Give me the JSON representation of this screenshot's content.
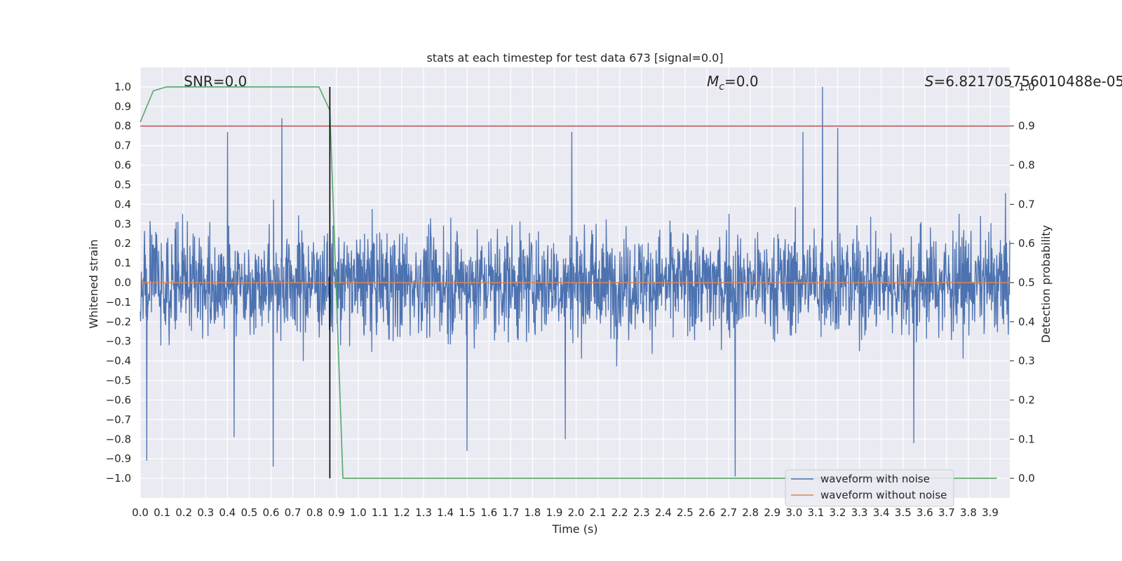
{
  "chart_data": {
    "type": "line",
    "title": "stats at each timestep for test data 673 [signal=0.0]",
    "xlabel": "Time (s)",
    "ylabel": "Whitened strain",
    "y2label": "Detection probability",
    "xlim": [
      0.0,
      3.99
    ],
    "ylim": [
      -1.1,
      1.1
    ],
    "y2lim": [
      -0.05,
      1.05
    ],
    "xticks": [
      "0.0",
      "0.1",
      "0.2",
      "0.3",
      "0.4",
      "0.5",
      "0.6",
      "0.7",
      "0.8",
      "0.9",
      "1.0",
      "1.1",
      "1.2",
      "1.3",
      "1.4",
      "1.5",
      "1.6",
      "1.7",
      "1.8",
      "1.9",
      "2.0",
      "2.1",
      "2.2",
      "2.3",
      "2.4",
      "2.5",
      "2.6",
      "2.7",
      "2.8",
      "2.9",
      "3.0",
      "3.1",
      "3.2",
      "3.3",
      "3.4",
      "3.5",
      "3.6",
      "3.7",
      "3.8",
      "3.9"
    ],
    "yticks": [
      "1.0",
      "0.9",
      "0.8",
      "0.7",
      "0.6",
      "0.5",
      "0.4",
      "0.3",
      "0.2",
      "0.1",
      "0.0",
      "−0.1",
      "−0.2",
      "−0.3",
      "−0.4",
      "−0.5",
      "−0.6",
      "−0.7",
      "−0.8",
      "−0.9",
      "−1.0"
    ],
    "y2ticks": [
      "1.0",
      "0.9",
      "0.8",
      "0.7",
      "0.6",
      "0.5",
      "0.4",
      "0.3",
      "0.2",
      "0.1",
      "0.0"
    ],
    "grid": true,
    "legend_position": "bottom-right",
    "series": [
      {
        "name": "waveform with noise",
        "color": "#4c72b0",
        "axis": "left",
        "description_values": {
          "typical_amplitude": 0.45,
          "peaks": [
            {
              "x": 0.65,
              "y": 0.84
            },
            {
              "x": 3.13,
              "y": 1.0
            },
            {
              "x": 0.61,
              "y": -0.94
            },
            {
              "x": 0.03,
              "y": -0.91
            },
            {
              "x": 2.73,
              "y": -0.99
            },
            {
              "x": 1.5,
              "y": -0.86
            },
            {
              "x": 3.55,
              "y": -0.82
            },
            {
              "x": 0.43,
              "y": -0.79
            },
            {
              "x": 1.95,
              "y": -0.8
            },
            {
              "x": 0.4,
              "y": 0.77
            },
            {
              "x": 1.98,
              "y": 0.77
            },
            {
              "x": 3.04,
              "y": 0.77
            },
            {
              "x": 3.2,
              "y": 0.79
            }
          ]
        }
      },
      {
        "name": "waveform without noise",
        "color": "#dd8452",
        "axis": "left",
        "x": [
          0.0,
          3.99
        ],
        "y": [
          0.0,
          0.0
        ]
      },
      {
        "name": "",
        "color": "#55a868",
        "axis": "right",
        "x": [
          0.0,
          0.06,
          0.12,
          0.82,
          0.87,
          0.93,
          3.93
        ],
        "y": [
          0.91,
          0.99,
          1.0,
          1.0,
          0.94,
          0.0,
          0.0
        ]
      },
      {
        "name": "",
        "color": "#c44e52",
        "axis": "right",
        "x": [
          0.0,
          3.99
        ],
        "y": [
          0.9,
          0.9
        ]
      }
    ],
    "vline": {
      "x": 0.87,
      "y_from": -1.0,
      "y_to": 1.0,
      "color": "#000000"
    },
    "annotations": [
      {
        "text": "SNR=0.0",
        "x": 0.2
      },
      {
        "text_var": "M",
        "text_sub": "c",
        "text_rest": "=0.0",
        "x": 2.6
      },
      {
        "text_var": "S",
        "text_rest": "=6.82170575601048​8e-05",
        "x": 3.6
      }
    ]
  }
}
